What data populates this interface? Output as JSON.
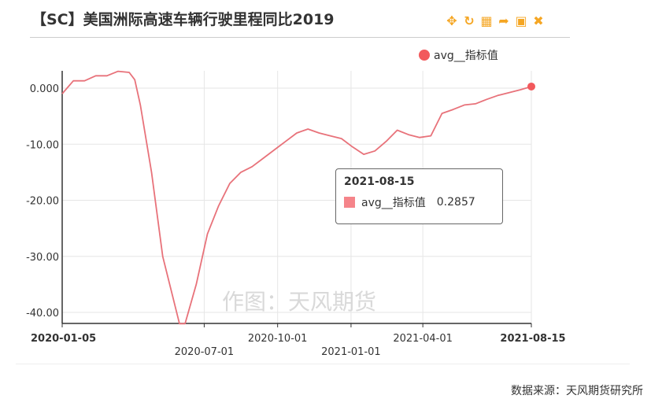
{
  "title": "【SC】美国洲际高速车辆行驶里程同比2019",
  "toolbox": {
    "icons": [
      "move-icon",
      "refresh-icon",
      "data-view-icon",
      "share-icon",
      "save-image-icon",
      "close-icon"
    ]
  },
  "watermark": "作图：天风期货",
  "source": "数据来源：天风期货研究所",
  "tooltip": {
    "date": "2021-08-15",
    "series": "avg__指标值",
    "value": "0.2857"
  },
  "colors": {
    "line": "#e8727a",
    "legend": "#f2595c",
    "toolbox": "#f5a623"
  },
  "chart_data": {
    "type": "line",
    "legend_position": "top-right",
    "grid": true,
    "ylim": [
      -42,
      3
    ],
    "y_ticks": [
      "0.000",
      "-10.00",
      "-20.00",
      "-30.00",
      "-40.00"
    ],
    "x_ticks": [
      {
        "date": "2020-01-05",
        "bold": true,
        "row": 0
      },
      {
        "date": "2020-07-01",
        "bold": false,
        "row": 1
      },
      {
        "date": "2020-10-01",
        "bold": false,
        "row": 0
      },
      {
        "date": "2021-01-01",
        "bold": false,
        "row": 1
      },
      {
        "date": "2021-04-01",
        "bold": false,
        "row": 0
      },
      {
        "date": "2021-08-15",
        "bold": true,
        "row": 0
      }
    ],
    "series": [
      {
        "name": "avg__指标值",
        "points": [
          [
            "2020-01-05",
            -1.0
          ],
          [
            "2020-01-19",
            1.3
          ],
          [
            "2020-02-02",
            1.3
          ],
          [
            "2020-02-16",
            2.2
          ],
          [
            "2020-03-01",
            2.2
          ],
          [
            "2020-03-15",
            3.0
          ],
          [
            "2020-03-29",
            2.8
          ],
          [
            "2020-04-05",
            1.5
          ],
          [
            "2020-04-12",
            -3.0
          ],
          [
            "2020-04-26",
            -15.0
          ],
          [
            "2020-05-10",
            -30.0
          ],
          [
            "2020-05-24",
            -38.0
          ],
          [
            "2020-05-31",
            -42.0
          ],
          [
            "2020-06-07",
            -42.0
          ],
          [
            "2020-06-21",
            -35.0
          ],
          [
            "2020-07-05",
            -26.0
          ],
          [
            "2020-07-19",
            -21.0
          ],
          [
            "2020-08-02",
            -17.0
          ],
          [
            "2020-08-16",
            -15.0
          ],
          [
            "2020-08-30",
            -14.0
          ],
          [
            "2020-09-13",
            -12.5
          ],
          [
            "2020-09-27",
            -11.0
          ],
          [
            "2020-10-11",
            -9.5
          ],
          [
            "2020-10-25",
            -8.0
          ],
          [
            "2020-11-08",
            -7.3
          ],
          [
            "2020-11-22",
            -8.0
          ],
          [
            "2020-12-06",
            -8.5
          ],
          [
            "2020-12-20",
            -9.0
          ],
          [
            "2021-01-03",
            -10.5
          ],
          [
            "2021-01-17",
            -11.8
          ],
          [
            "2021-01-31",
            -11.2
          ],
          [
            "2021-02-14",
            -9.5
          ],
          [
            "2021-02-28",
            -7.5
          ],
          [
            "2021-03-14",
            -8.3
          ],
          [
            "2021-03-28",
            -8.8
          ],
          [
            "2021-04-11",
            -8.5
          ],
          [
            "2021-04-25",
            -4.5
          ],
          [
            "2021-05-09",
            -3.8
          ],
          [
            "2021-05-23",
            -3.0
          ],
          [
            "2021-06-06",
            -2.8
          ],
          [
            "2021-06-20",
            -2.0
          ],
          [
            "2021-07-04",
            -1.3
          ],
          [
            "2021-07-18",
            -0.8
          ],
          [
            "2021-08-01",
            -0.3
          ],
          [
            "2021-08-15",
            0.2857
          ]
        ]
      }
    ]
  }
}
